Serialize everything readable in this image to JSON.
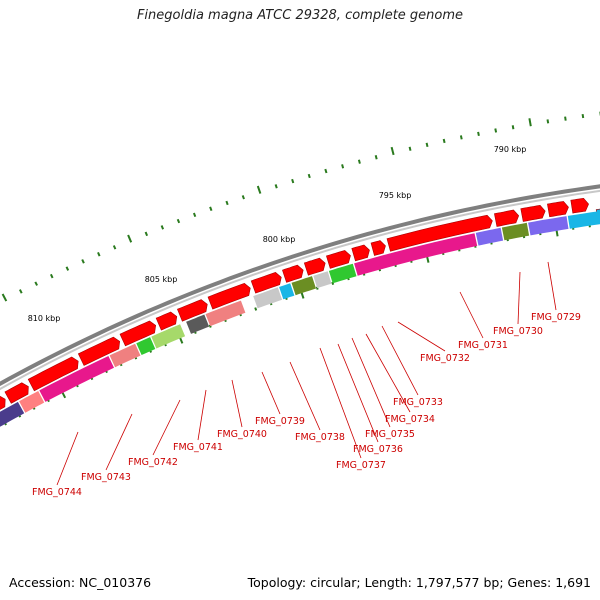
{
  "title": "Finegoldia magna ATCC 29328, complete genome",
  "footer": {
    "accession": "Accession: NC_010376",
    "topology": "Topology: circular; Length: 1,797,577 bp; Genes: 1,691"
  },
  "ticks": [
    "790 kbp",
    "795 kbp",
    "800 kbp",
    "805 kbp",
    "810 kbp"
  ],
  "gene_labels": [
    "FMG_0729",
    "FMG_0730",
    "FMG_0731",
    "FMG_0732",
    "FMG_0733",
    "FMG_0734",
    "FMG_0735",
    "FMG_0736",
    "FMG_0737",
    "FMG_0738",
    "FMG_0739",
    "FMG_0740",
    "FMG_0741",
    "FMG_0742",
    "FMG_0743",
    "FMG_0744"
  ],
  "colors": {
    "forward": "#ff0000",
    "backbone": "#808080",
    "tick": "#2a7a1e",
    "label": "#cc0000"
  }
}
